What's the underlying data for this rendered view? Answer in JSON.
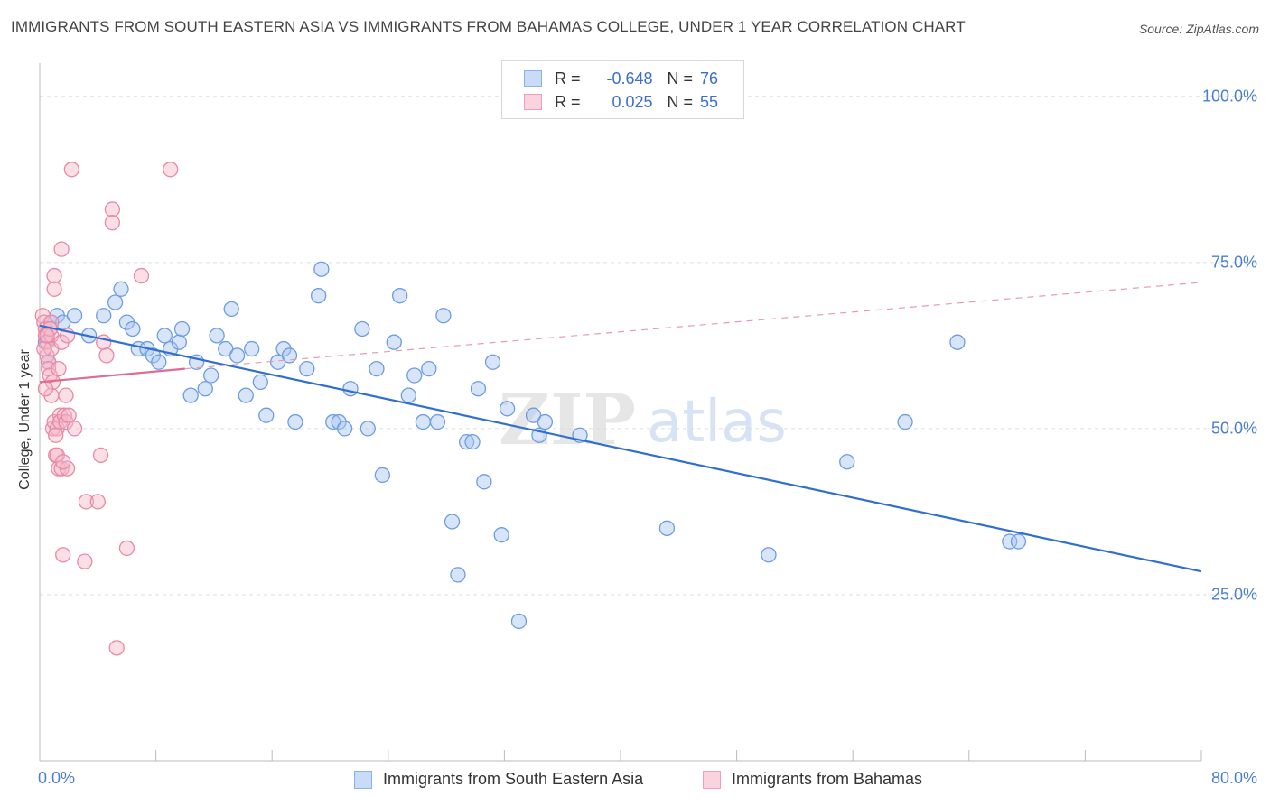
{
  "title": "IMMIGRANTS FROM SOUTH EASTERN ASIA VS IMMIGRANTS FROM BAHAMAS COLLEGE, UNDER 1 YEAR CORRELATION CHART",
  "source": "Source: ZipAtlas.com",
  "watermark": {
    "zip": "ZIP",
    "atlas": "atlas"
  },
  "legend": {
    "rows": [
      {
        "r_label": "R =",
        "r_value": "-0.648",
        "n_label": "N =",
        "n_value": "76",
        "color": "#a9c6f2"
      },
      {
        "r_label": "R =",
        "r_value": "0.025",
        "n_label": "N =",
        "n_value": "55",
        "color": "#f5b8c9"
      }
    ]
  },
  "bottom_legend": {
    "items": [
      {
        "label": "Immigrants from South Eastern Asia",
        "color": "#a9c6f2"
      },
      {
        "label": "Immigrants from Bahamas",
        "color": "#f5b8c9"
      }
    ]
  },
  "chart_data": {
    "type": "scatter",
    "ylabel": "College, Under 1 year",
    "xlabel": "",
    "xlim": [
      0,
      80
    ],
    "ylim": [
      0,
      105
    ],
    "x_tick_labels": [
      "0.0%",
      "80.0%"
    ],
    "y_ticks": [
      {
        "value": 100,
        "label": "100.0%"
      },
      {
        "value": 75,
        "label": "75.0%"
      },
      {
        "value": 50,
        "label": "50.0%"
      },
      {
        "value": 25,
        "label": "25.0%"
      }
    ],
    "grid": true,
    "series": [
      {
        "name": "Immigrants from South Eastern Asia",
        "color": "#6c9de0",
        "fill": "#a9c6f2",
        "trend": {
          "x": [
            0,
            80
          ],
          "y": [
            65.5,
            28.5
          ],
          "style": "solid",
          "color": "#2f6fd0"
        },
        "points": [
          [
            0.4,
            63
          ],
          [
            0.8,
            66
          ],
          [
            1.2,
            67
          ],
          [
            1.6,
            66
          ],
          [
            2.4,
            67
          ],
          [
            3.4,
            64
          ],
          [
            4.4,
            67
          ],
          [
            5.2,
            69
          ],
          [
            5.6,
            71
          ],
          [
            6.0,
            66
          ],
          [
            6.4,
            65
          ],
          [
            6.8,
            62
          ],
          [
            7.4,
            62
          ],
          [
            7.8,
            61
          ],
          [
            8.2,
            60
          ],
          [
            8.6,
            64
          ],
          [
            9.0,
            62
          ],
          [
            9.6,
            63
          ],
          [
            9.8,
            65
          ],
          [
            10.4,
            55
          ],
          [
            10.8,
            60
          ],
          [
            11.4,
            56
          ],
          [
            11.8,
            58
          ],
          [
            12.2,
            64
          ],
          [
            12.8,
            62
          ],
          [
            13.2,
            68
          ],
          [
            13.6,
            61
          ],
          [
            14.2,
            55
          ],
          [
            14.6,
            62
          ],
          [
            15.2,
            57
          ],
          [
            15.6,
            52
          ],
          [
            16.4,
            60
          ],
          [
            16.8,
            62
          ],
          [
            17.2,
            61
          ],
          [
            17.6,
            51
          ],
          [
            18.4,
            59
          ],
          [
            19.2,
            70
          ],
          [
            19.4,
            74
          ],
          [
            20.2,
            51
          ],
          [
            20.6,
            51
          ],
          [
            21.0,
            50
          ],
          [
            21.4,
            56
          ],
          [
            22.2,
            65
          ],
          [
            22.6,
            50
          ],
          [
            23.2,
            59
          ],
          [
            23.6,
            43
          ],
          [
            24.4,
            63
          ],
          [
            24.8,
            70
          ],
          [
            25.4,
            55
          ],
          [
            25.8,
            58
          ],
          [
            26.4,
            51
          ],
          [
            26.8,
            59
          ],
          [
            27.4,
            51
          ],
          [
            27.8,
            67
          ],
          [
            28.4,
            36
          ],
          [
            28.8,
            28
          ],
          [
            29.4,
            48
          ],
          [
            29.8,
            48
          ],
          [
            30.2,
            56
          ],
          [
            30.6,
            42
          ],
          [
            31.2,
            60
          ],
          [
            31.8,
            34
          ],
          [
            32.2,
            53
          ],
          [
            33.0,
            21
          ],
          [
            34.0,
            52
          ],
          [
            34.4,
            49
          ],
          [
            34.8,
            51
          ],
          [
            37.2,
            49
          ],
          [
            43.2,
            35
          ],
          [
            50.2,
            31
          ],
          [
            55.6,
            45
          ],
          [
            59.6,
            51
          ],
          [
            63.2,
            63
          ],
          [
            66.8,
            33
          ],
          [
            67.4,
            33
          ],
          [
            0.6,
            60
          ]
        ]
      },
      {
        "name": "Immigrants from Bahamas",
        "color": "#e889a6",
        "fill": "#f5b8c9",
        "trend": {
          "x": [
            0,
            10
          ],
          "y": [
            57,
            59
          ],
          "style": "solid",
          "color": "#e06b94"
        },
        "trend_ext": {
          "x": [
            10,
            80
          ],
          "y": [
            59,
            72
          ],
          "style": "dashed",
          "color": "#e89ab3"
        },
        "points": [
          [
            0.2,
            67
          ],
          [
            0.3,
            66
          ],
          [
            0.4,
            65
          ],
          [
            0.4,
            64
          ],
          [
            0.5,
            63
          ],
          [
            0.5,
            61
          ],
          [
            0.6,
            60
          ],
          [
            0.6,
            59
          ],
          [
            0.7,
            58
          ],
          [
            0.8,
            66
          ],
          [
            0.8,
            64
          ],
          [
            0.8,
            62
          ],
          [
            0.8,
            55
          ],
          [
            0.9,
            50
          ],
          [
            1.0,
            73
          ],
          [
            1.0,
            71
          ],
          [
            1.0,
            51
          ],
          [
            1.1,
            46
          ],
          [
            1.2,
            50
          ],
          [
            1.2,
            46
          ],
          [
            1.3,
            44
          ],
          [
            1.4,
            52
          ],
          [
            1.4,
            51
          ],
          [
            1.5,
            77
          ],
          [
            1.5,
            63
          ],
          [
            1.5,
            44
          ],
          [
            1.6,
            31
          ],
          [
            1.7,
            52
          ],
          [
            1.8,
            55
          ],
          [
            1.8,
            51
          ],
          [
            1.9,
            44
          ],
          [
            2.2,
            89
          ],
          [
            2.4,
            50
          ],
          [
            3.1,
            30
          ],
          [
            3.2,
            39
          ],
          [
            4.0,
            39
          ],
          [
            4.2,
            46
          ],
          [
            4.4,
            63
          ],
          [
            4.6,
            61
          ],
          [
            5.0,
            83
          ],
          [
            5.0,
            81
          ],
          [
            5.3,
            17
          ],
          [
            6.0,
            32
          ],
          [
            7.0,
            73
          ],
          [
            9.0,
            89
          ],
          [
            0.3,
            62
          ],
          [
            0.9,
            57
          ],
          [
            1.3,
            59
          ],
          [
            0.7,
            65
          ],
          [
            2.0,
            52
          ],
          [
            1.1,
            49
          ],
          [
            0.5,
            64
          ],
          [
            1.6,
            45
          ],
          [
            0.4,
            56
          ],
          [
            1.9,
            64
          ]
        ]
      }
    ]
  }
}
